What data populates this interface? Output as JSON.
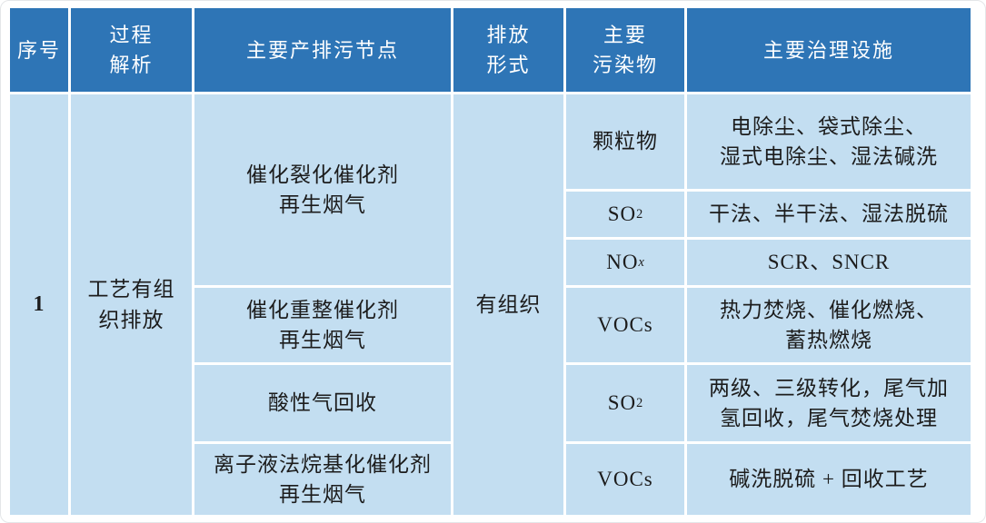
{
  "colors": {
    "header_bg": "#2e75b6",
    "body_bg": "#c3def1",
    "header_text": "#ffffff",
    "body_text": "#1c1c1c",
    "grid_line": "#ffffff"
  },
  "table": {
    "columns": [
      {
        "label": "序号"
      },
      {
        "label": "过程\n解析"
      },
      {
        "label": "主要产排污节点"
      },
      {
        "label": "排放\n形式"
      },
      {
        "label": "主要\n污染物"
      },
      {
        "label": "主要治理设施"
      }
    ],
    "row_group": {
      "index": "1",
      "process": "工艺有组\n织排放",
      "emission_form": "有组织",
      "nodes": [
        {
          "label": "催化裂化催化剂\n再生烟气"
        },
        {
          "label": "催化重整催化剂\n再生烟气"
        },
        {
          "label": "酸性气回收"
        },
        {
          "label": "离子液法烷基化催化剂\n再生烟气"
        }
      ],
      "pollutant_rows": [
        {
          "pollutant": {
            "base": "颗粒物",
            "sub": ""
          },
          "treatment": "电除尘、袋式除尘、\n湿式电除尘、湿法碱洗"
        },
        {
          "pollutant": {
            "base": "SO",
            "sub": "2"
          },
          "treatment": "干法、半干法、湿法脱硫"
        },
        {
          "pollutant": {
            "base": "NO",
            "sub": "x"
          },
          "treatment": "SCR、SNCR"
        },
        {
          "pollutant": {
            "base": "VOCs",
            "sub": ""
          },
          "treatment": "热力焚烧、催化燃烧、\n蓄热燃烧"
        },
        {
          "pollutant": {
            "base": "SO",
            "sub": "2"
          },
          "treatment": "两级、三级转化，尾气加\n氢回收，尾气焚烧处理"
        },
        {
          "pollutant": {
            "base": "VOCs",
            "sub": ""
          },
          "treatment": "碱洗脱硫 + 回收工艺"
        }
      ]
    }
  }
}
